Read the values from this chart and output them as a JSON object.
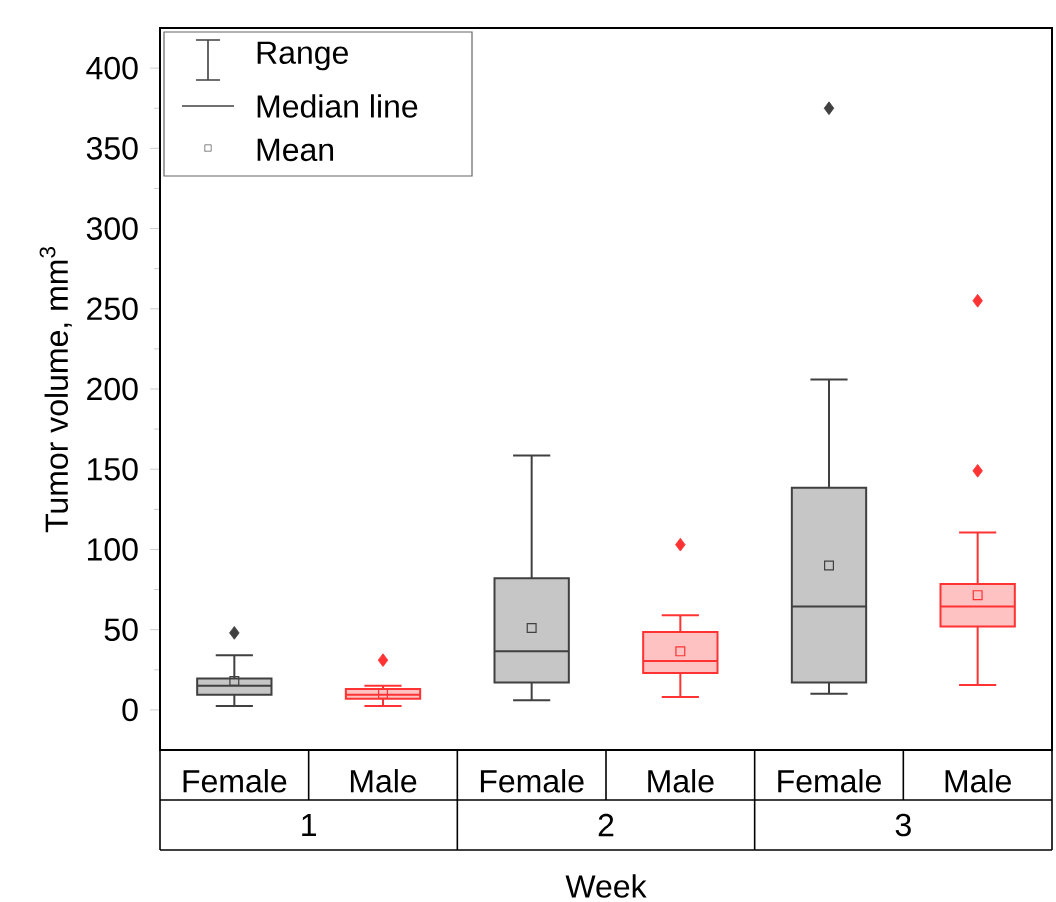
{
  "chart_data": {
    "type": "box",
    "categories": [
      "Female",
      "Male",
      "Female",
      "Male",
      "Female",
      "Male"
    ],
    "xlabel": "Week",
    "ylabel": "Tumor volume, mm$^{3}$",
    "ylim": [
      -25,
      425
    ],
    "yticks": [
      0,
      50,
      100,
      150,
      200,
      250,
      300,
      350,
      400
    ],
    "marker": "diamond",
    "colors": [
      "#404040",
      "#ff3333",
      "#404040",
      "#ff3333",
      "#404040",
      "#ff3333"
    ],
    "boxes": [
      {
        "low": 2.5,
        "q1": 9.5,
        "median": 15,
        "q3": 19.5,
        "high": 34,
        "mean": 18,
        "outliers": [
          48
        ]
      },
      {
        "low": 2.5,
        "q1": 7,
        "median": 9.5,
        "q3": 13,
        "high": 15,
        "mean": 10,
        "outliers": [
          31
        ]
      },
      {
        "low": 6,
        "q1": 17,
        "median": 36.5,
        "q3": 82,
        "high": 158.5,
        "mean": 51
      },
      {
        "low": 8,
        "q1": 23,
        "median": 30.5,
        "q3": 48.5,
        "high": 59,
        "mean": 36.5,
        "outliers": [
          103
        ]
      },
      {
        "low": 10,
        "q1": 17,
        "median": 64.5,
        "q3": 138.5,
        "high": 206,
        "mean": 90,
        "outliers": [
          375
        ]
      },
      {
        "low": 15.5,
        "q1": 52,
        "median": 64.5,
        "q3": 78.5,
        "high": 110.5,
        "mean": 71.5,
        "outliers": [
          149,
          255
        ]
      }
    ],
    "annotations": [
      "Range",
      "Median line",
      "Mean",
      "1",
      "2",
      "3"
    ]
  }
}
